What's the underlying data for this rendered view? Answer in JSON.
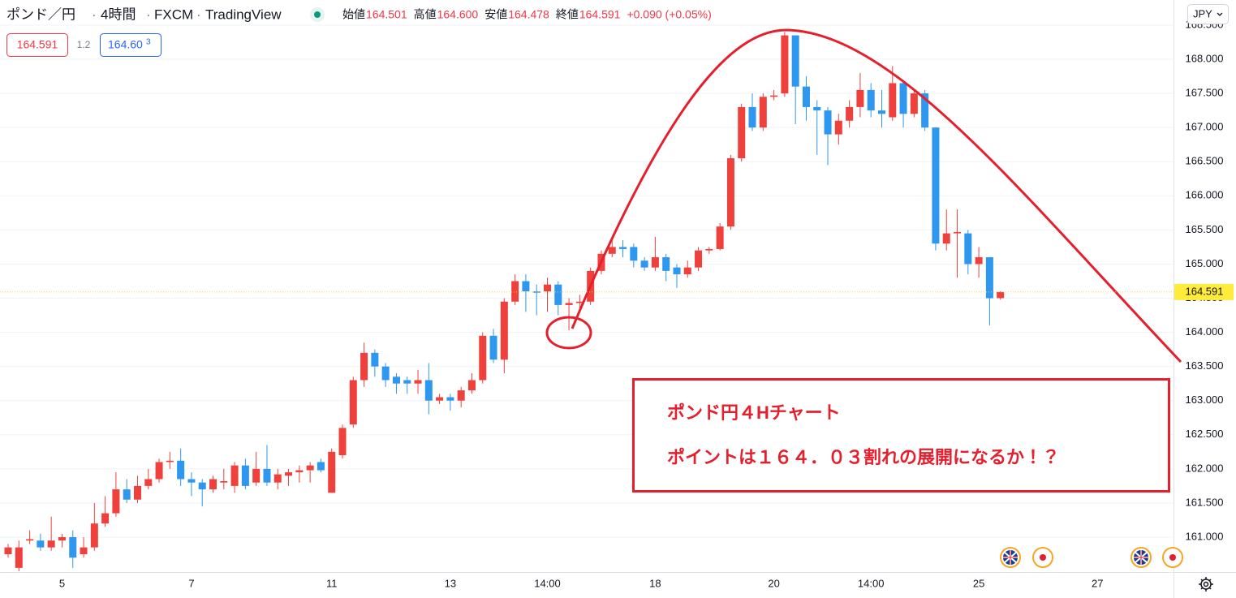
{
  "chart_data": {
    "type": "candlestick",
    "header": {
      "symbol": "ポンド／円",
      "interval": "4時間",
      "exchange": "FXCM",
      "source": "TradingView"
    },
    "ohlc_legend": [
      {
        "label": "始値",
        "value": "164.501"
      },
      {
        "label": "高値",
        "value": "164.600"
      },
      {
        "label": "安値",
        "value": "164.478"
      },
      {
        "label": "終値",
        "value": "164.591"
      }
    ],
    "change": "+0.090 (+0.05%)",
    "sell_price": "164.591",
    "spread": "1.2",
    "buy_price": "164.60",
    "buy_price_pip": "3",
    "currency": "JPY",
    "annotation": [
      "ポンド円４Hチャート",
      "ポイントは１６４．０３割れの展開になるか！？"
    ],
    "up_color": "#f0403c",
    "down_color": "#2e97f0",
    "last_price": {
      "value": 164.591,
      "label": "164.591"
    },
    "ylim": [
      160.489,
      168.868
    ],
    "yticks": [
      {
        "value": 161,
        "label": "161.000"
      },
      {
        "value": 161.5,
        "label": "161.500"
      },
      {
        "value": 162,
        "label": "162.000"
      },
      {
        "value": 162.5,
        "label": "162.500"
      },
      {
        "value": 163,
        "label": "163.000"
      },
      {
        "value": 163.5,
        "label": "163.500"
      },
      {
        "value": 164,
        "label": "164.000"
      },
      {
        "value": 164.5,
        "label": "164.500"
      },
      {
        "value": 165,
        "label": "165.000"
      },
      {
        "value": 165.5,
        "label": "165.500"
      },
      {
        "value": 166,
        "label": "166.000"
      },
      {
        "value": 166.5,
        "label": "166.500"
      },
      {
        "value": 167,
        "label": "167.000"
      },
      {
        "value": 167.5,
        "label": "167.500"
      },
      {
        "value": 168,
        "label": "168.000"
      },
      {
        "value": 168.5,
        "label": "168.500"
      }
    ],
    "grid": true,
    "categories": [
      null,
      null,
      null,
      null,
      null,
      "5",
      null,
      null,
      null,
      null,
      null,
      null,
      null,
      null,
      null,
      null,
      null,
      "7",
      null,
      null,
      null,
      null,
      null,
      null,
      null,
      null,
      null,
      null,
      null,
      null,
      "11",
      null,
      null,
      null,
      null,
      null,
      null,
      null,
      null,
      null,
      null,
      "13",
      null,
      null,
      null,
      null,
      null,
      null,
      null,
      null,
      "14:00",
      null,
      null,
      null,
      null,
      null,
      null,
      null,
      null,
      null,
      "18",
      null,
      null,
      null,
      null,
      null,
      null,
      null,
      null,
      null,
      null,
      "20",
      null,
      null,
      null,
      null,
      null,
      null,
      null,
      null,
      "14:00",
      null,
      null,
      null,
      null,
      null,
      null,
      null,
      null,
      null,
      "25",
      null,
      null,
      null,
      null,
      null,
      null,
      null,
      null,
      null,
      null,
      "27"
    ],
    "open": [
      160.75,
      160.55,
      160.95,
      160.95,
      160.85,
      160.95,
      161.0,
      160.75,
      160.85,
      161.2,
      161.35,
      161.7,
      161.55,
      161.75,
      161.85,
      162.1,
      162.12,
      161.85,
      161.8,
      161.7,
      161.8,
      161.75,
      162.05,
      161.8,
      162.0,
      161.8,
      161.9,
      161.95,
      161.98,
      162.1,
      161.65,
      162.2,
      162.65,
      163.3,
      163.7,
      163.5,
      163.35,
      163.3,
      163.25,
      163.3,
      163.0,
      163.05,
      163.0,
      163.15,
      163.3,
      163.95,
      163.6,
      164.45,
      164.75,
      164.6,
      164.6,
      164.7,
      164.4,
      164.43,
      164.45,
      164.9,
      165.15,
      165.25,
      165.25,
      165.05,
      164.95,
      165.1,
      164.95,
      164.85,
      164.95,
      165.2,
      165.22,
      165.55,
      166.55,
      167.3,
      167.0,
      167.45,
      167.5,
      168.35,
      167.6,
      167.3,
      167.25,
      166.9,
      167.1,
      167.3,
      167.55,
      167.25,
      167.15,
      167.65,
      167.2,
      167.5,
      167.0,
      165.3,
      165.45,
      165.45,
      165.0,
      165.1,
      164.501,
      null,
      null,
      null,
      null,
      null,
      null,
      null,
      null,
      null
    ],
    "high": [
      160.9,
      160.95,
      161.1,
      161.05,
      161.3,
      161.05,
      161.1,
      161.0,
      161.5,
      161.6,
      161.95,
      161.85,
      161.9,
      162.0,
      162.15,
      162.25,
      162.3,
      161.95,
      161.85,
      161.9,
      162.0,
      162.1,
      162.15,
      162.25,
      162.35,
      162.0,
      162.0,
      162.05,
      162.1,
      162.15,
      162.3,
      162.65,
      163.35,
      163.85,
      163.75,
      163.55,
      163.4,
      163.35,
      163.45,
      163.55,
      163.1,
      163.1,
      163.2,
      163.4,
      164.0,
      164.05,
      164.5,
      164.85,
      164.85,
      164.7,
      164.8,
      164.75,
      164.5,
      164.55,
      164.95,
      165.2,
      165.35,
      165.35,
      165.3,
      165.1,
      165.4,
      165.15,
      165.0,
      165.05,
      165.25,
      165.25,
      165.6,
      166.6,
      167.35,
      167.5,
      167.5,
      167.55,
      168.4,
      168.35,
      167.75,
      167.4,
      167.3,
      167.2,
      167.4,
      167.8,
      167.65,
      167.55,
      167.9,
      167.7,
      167.55,
      167.55,
      167.0,
      165.8,
      165.8,
      165.5,
      165.25,
      165.1,
      164.6,
      null,
      null,
      null,
      null,
      null,
      null,
      null,
      null,
      null
    ],
    "low": [
      160.7,
      160.5,
      160.9,
      160.8,
      160.8,
      160.85,
      160.55,
      160.7,
      160.8,
      161.15,
      161.3,
      161.5,
      161.5,
      161.7,
      161.8,
      162.0,
      161.75,
      161.6,
      161.45,
      161.65,
      161.7,
      161.65,
      161.7,
      161.75,
      161.75,
      161.7,
      161.75,
      161.8,
      161.8,
      161.95,
      161.65,
      162.15,
      162.6,
      163.2,
      163.35,
      163.2,
      163.1,
      163.1,
      163.1,
      162.8,
      162.95,
      162.85,
      162.9,
      163.1,
      163.25,
      163.55,
      163.4,
      164.4,
      164.3,
      164.25,
      164.3,
      164.25,
      164.03,
      164.35,
      164.4,
      164.85,
      165.1,
      165.1,
      164.95,
      164.9,
      164.9,
      164.75,
      164.65,
      164.8,
      164.9,
      165.15,
      165.2,
      165.5,
      166.5,
      166.95,
      166.95,
      167.4,
      167.45,
      167.05,
      167.1,
      166.6,
      166.45,
      166.75,
      167.0,
      167.15,
      167.15,
      167.0,
      167.1,
      167.0,
      167.15,
      166.95,
      165.2,
      165.2,
      164.8,
      164.85,
      164.8,
      164.1,
      164.478,
      null,
      null,
      null,
      null,
      null,
      null,
      null,
      null,
      null
    ],
    "close": [
      160.85,
      160.85,
      160.97,
      160.85,
      160.95,
      161.0,
      160.7,
      160.85,
      161.2,
      161.35,
      161.7,
      161.55,
      161.75,
      161.85,
      162.1,
      162.12,
      161.85,
      161.8,
      161.7,
      161.85,
      161.82,
      162.05,
      161.75,
      162.0,
      161.8,
      161.92,
      161.95,
      161.98,
      162.05,
      161.98,
      162.25,
      162.6,
      163.3,
      163.7,
      163.5,
      163.3,
      163.25,
      163.25,
      163.3,
      163.0,
      163.05,
      163.0,
      163.15,
      163.3,
      163.95,
      163.6,
      164.45,
      164.75,
      164.6,
      164.58,
      164.7,
      164.4,
      164.43,
      164.45,
      164.9,
      165.15,
      165.25,
      165.22,
      165.05,
      164.95,
      165.1,
      164.9,
      164.85,
      164.95,
      165.2,
      165.22,
      165.55,
      166.55,
      167.3,
      167.0,
      167.45,
      167.47,
      168.35,
      167.6,
      167.3,
      167.25,
      166.9,
      167.1,
      167.3,
      167.55,
      167.25,
      167.2,
      167.65,
      167.2,
      167.5,
      167.0,
      165.3,
      165.45,
      165.47,
      165.0,
      165.1,
      164.5,
      164.591,
      null,
      null,
      null,
      null,
      null,
      null,
      null,
      null,
      null
    ]
  }
}
